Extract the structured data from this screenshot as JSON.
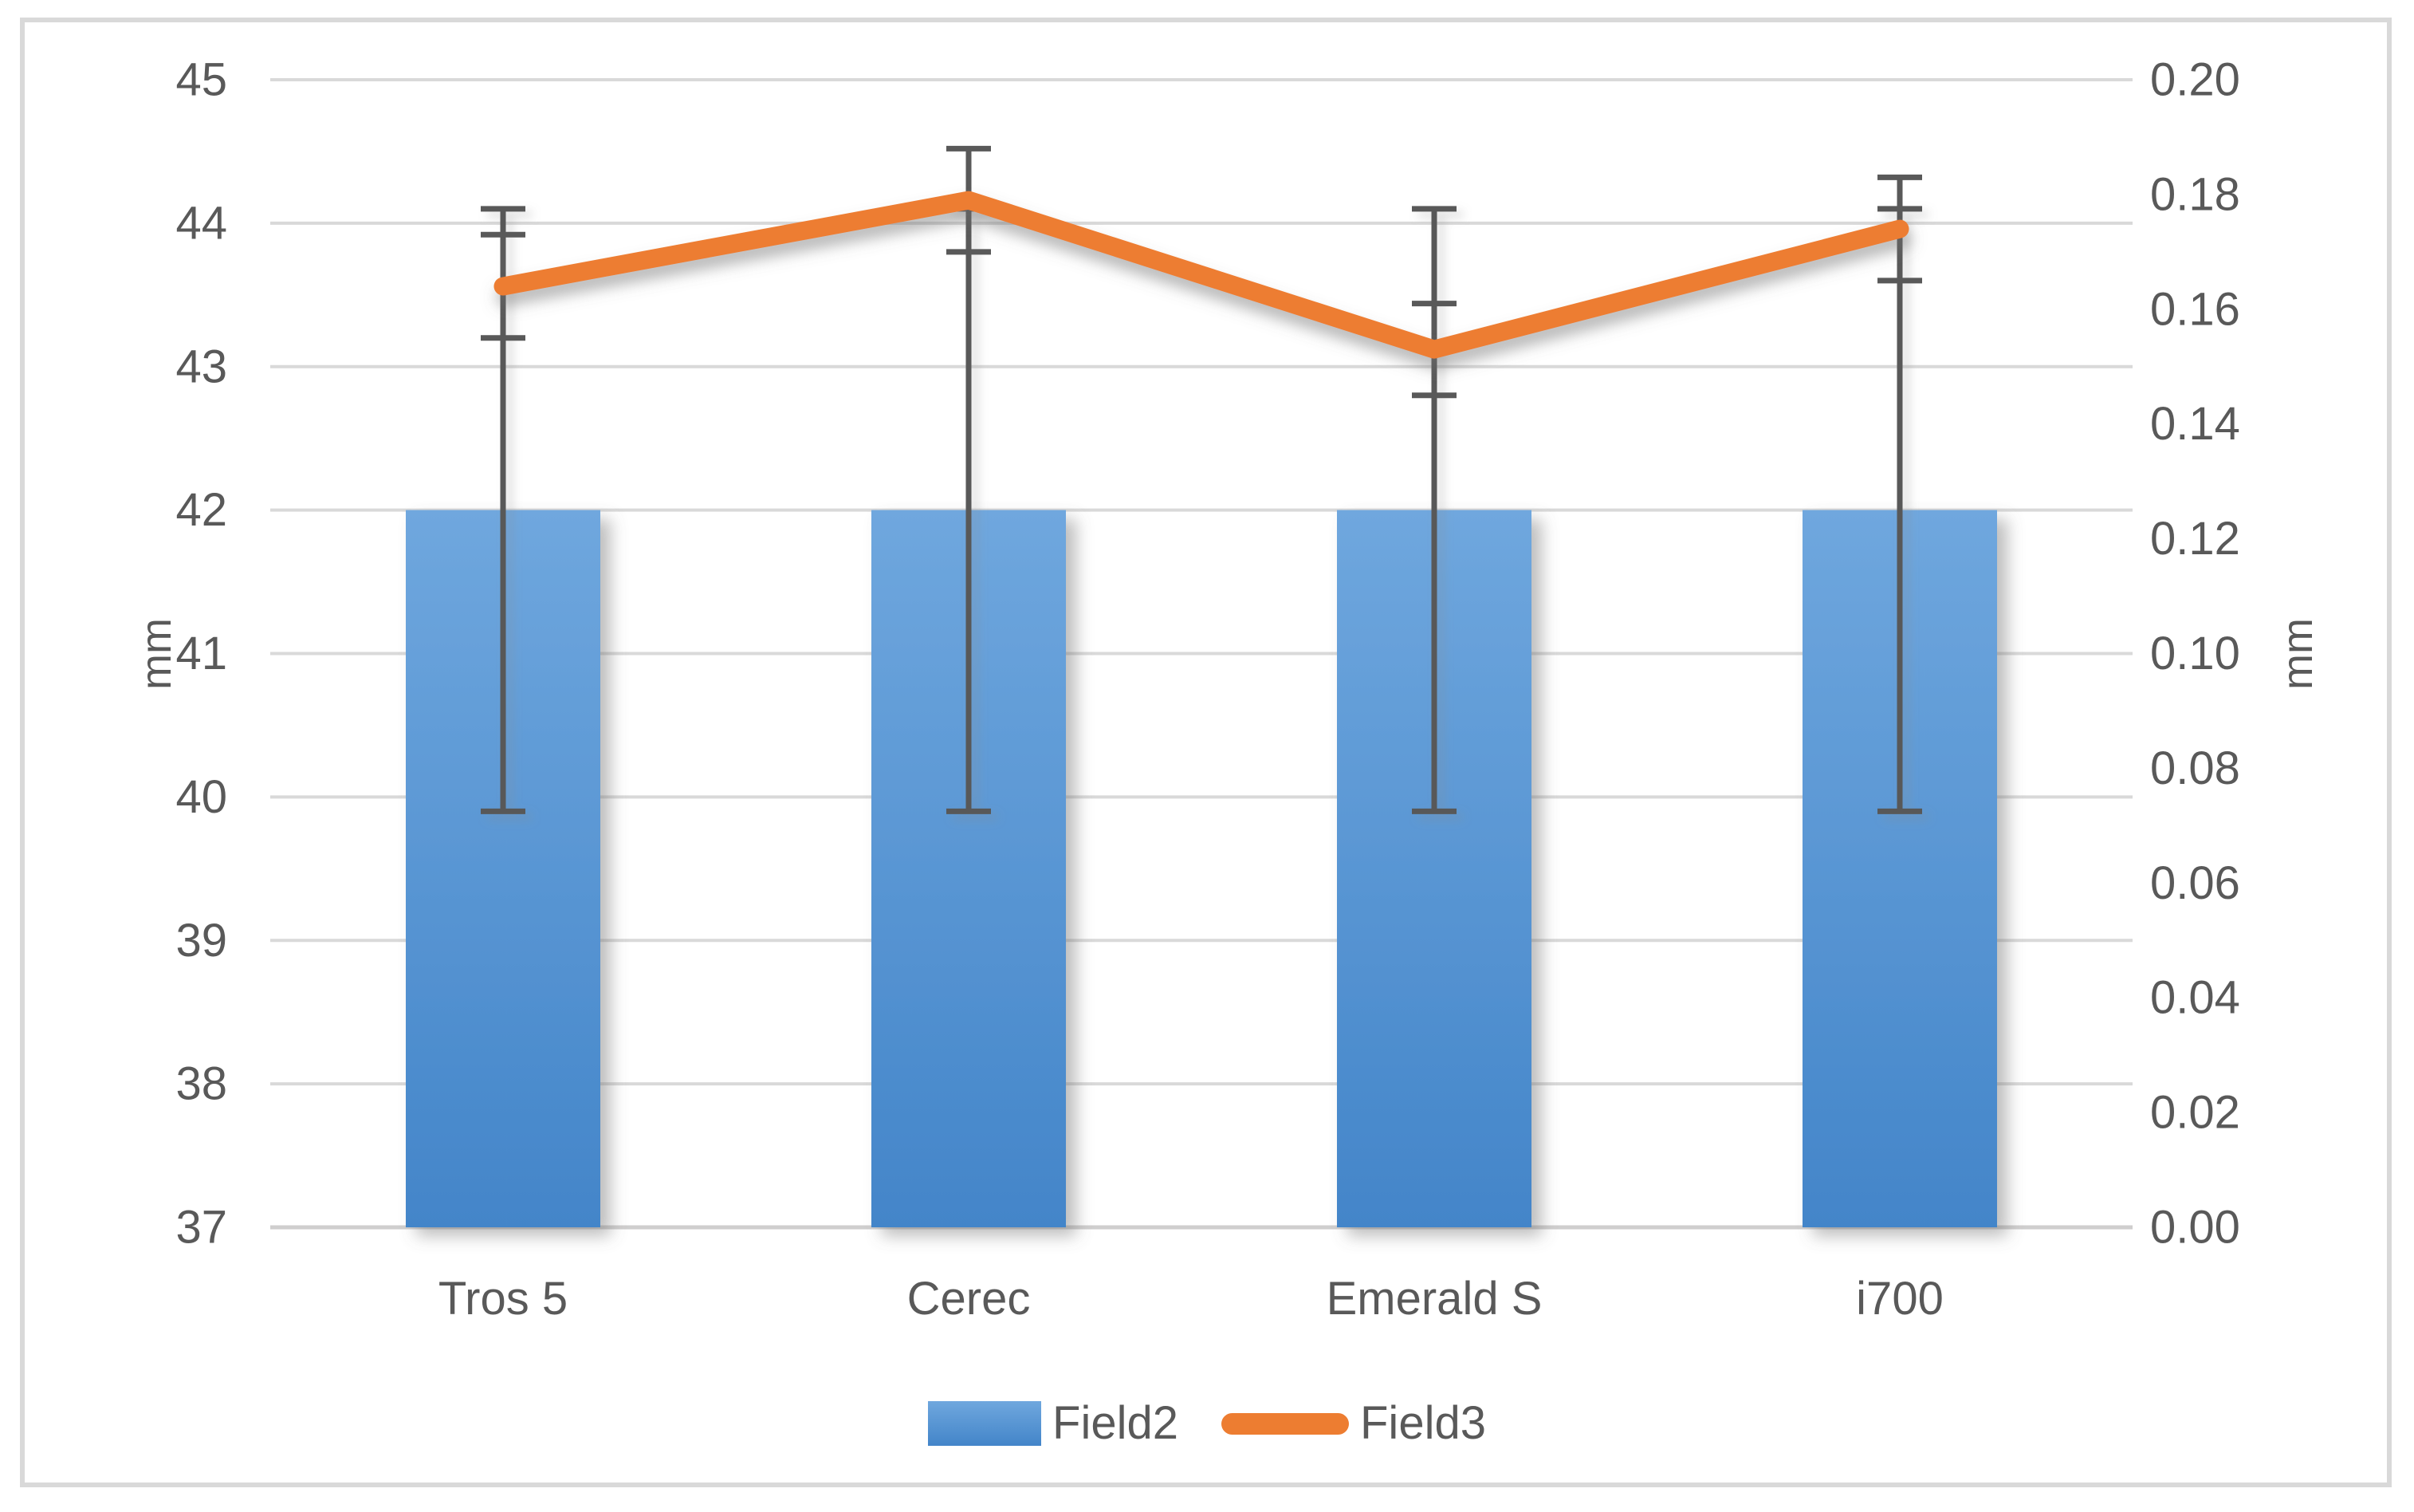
{
  "chart_data": {
    "type": "combo-bar-line",
    "title": "",
    "categories": [
      "Tros 5",
      "Cerec",
      "Emerald S",
      "i700"
    ],
    "series": [
      {
        "name": "Field2",
        "type": "bar",
        "axis": "left",
        "values": [
          42,
          42,
          42,
          42
        ],
        "error_plus_minus": [
          2.1,
          2.1,
          2.1,
          2.1
        ]
      },
      {
        "name": "Field3",
        "type": "line",
        "axis": "right",
        "values": [
          0.164,
          0.179,
          0.153,
          0.174
        ],
        "error_plus_minus": [
          0.009,
          0.009,
          0.008,
          0.009
        ]
      }
    ],
    "left_axis": {
      "title": "mm",
      "min": 37,
      "max": 45,
      "tick_step": 1,
      "tick_labels": [
        "45",
        "44",
        "43",
        "42",
        "41",
        "40",
        "39",
        "38",
        "37"
      ]
    },
    "right_axis": {
      "title": "mm",
      "min": 0.0,
      "max": 0.2,
      "tick_step": 0.02,
      "tick_labels": [
        "0.20",
        "0.18",
        "0.16",
        "0.14",
        "0.12",
        "0.10",
        "0.08",
        "0.06",
        "0.04",
        "0.02",
        "0.00"
      ]
    },
    "legend": {
      "position": "bottom",
      "entries": [
        "Field2",
        "Field3"
      ]
    },
    "grid": true,
    "colors": {
      "bar_top": "#6FA7DE",
      "bar_bottom": "#4385C9",
      "line": "#ED7D31",
      "error_bar": "#595959",
      "gridline": "#D9D9D9",
      "axis_line": "#CFCECE",
      "text": "#595959",
      "border": "#D9D9D9"
    }
  }
}
